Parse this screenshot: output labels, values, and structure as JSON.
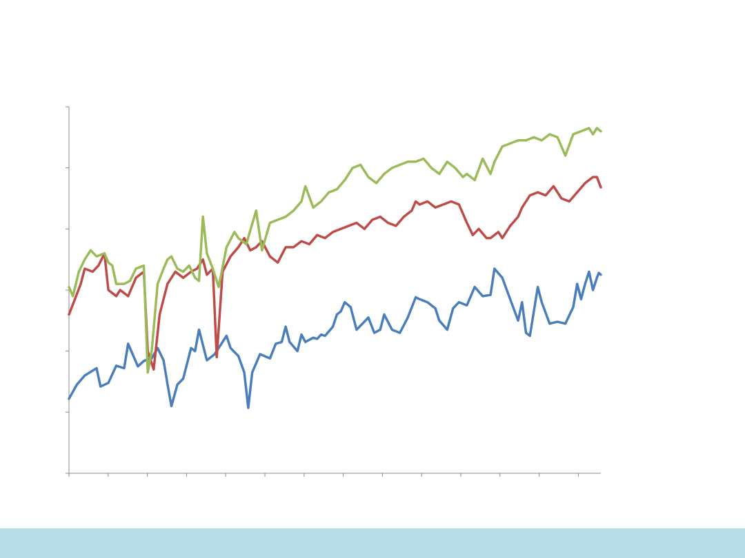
{
  "theme": {
    "background": "#ffffff",
    "footer_color": "#b8dde6",
    "axis_color": "#8a8a8a"
  },
  "chart_data": {
    "type": "line",
    "title": "",
    "xlabel": "",
    "ylabel": "",
    "xlim": [
      0,
      270
    ],
    "ylim": [
      0,
      6
    ],
    "x_tick_count": 14,
    "y_tick_count": 7,
    "grid": false,
    "legend": "none",
    "series": [
      {
        "color": "#4a7ebb",
        "points": [
          [
            0,
            1.22
          ],
          [
            4,
            1.45
          ],
          [
            8,
            1.6
          ],
          [
            14,
            1.72
          ],
          [
            16,
            1.42
          ],
          [
            20,
            1.48
          ],
          [
            24,
            1.76
          ],
          [
            28,
            1.72
          ],
          [
            30,
            2.12
          ],
          [
            35,
            1.75
          ],
          [
            38,
            1.84
          ],
          [
            42,
            1.88
          ],
          [
            45,
            2.05
          ],
          [
            48,
            1.85
          ],
          [
            50,
            1.46
          ],
          [
            52,
            1.1
          ],
          [
            55,
            1.45
          ],
          [
            58,
            1.55
          ],
          [
            62,
            2.05
          ],
          [
            64,
            2.0
          ],
          [
            66,
            2.35
          ],
          [
            70,
            1.85
          ],
          [
            74,
            1.95
          ],
          [
            80,
            2.25
          ],
          [
            82,
            2.05
          ],
          [
            86,
            1.92
          ],
          [
            89,
            1.65
          ],
          [
            91,
            1.07
          ],
          [
            93,
            1.65
          ],
          [
            97,
            1.95
          ],
          [
            102,
            1.88
          ],
          [
            105,
            2.12
          ],
          [
            108,
            2.15
          ],
          [
            110,
            2.4
          ],
          [
            112,
            2.15
          ],
          [
            116,
            2.0
          ],
          [
            118,
            2.27
          ],
          [
            120,
            2.15
          ],
          [
            124,
            2.22
          ],
          [
            126,
            2.2
          ],
          [
            128,
            2.27
          ],
          [
            130,
            2.25
          ],
          [
            134,
            2.4
          ],
          [
            136,
            2.6
          ],
          [
            138,
            2.65
          ],
          [
            140,
            2.8
          ],
          [
            143,
            2.72
          ],
          [
            146,
            2.35
          ],
          [
            149,
            2.45
          ],
          [
            152,
            2.55
          ],
          [
            155,
            2.3
          ],
          [
            158,
            2.35
          ],
          [
            160,
            2.6
          ],
          [
            164,
            2.35
          ],
          [
            168,
            2.3
          ],
          [
            172,
            2.55
          ],
          [
            176,
            2.88
          ],
          [
            178,
            2.85
          ],
          [
            182,
            2.8
          ],
          [
            186,
            2.7
          ],
          [
            188,
            2.5
          ],
          [
            192,
            2.35
          ],
          [
            195,
            2.7
          ],
          [
            198,
            2.8
          ],
          [
            202,
            2.75
          ],
          [
            206,
            3.05
          ],
          [
            210,
            2.9
          ],
          [
            214,
            2.92
          ],
          [
            216,
            3.35
          ],
          [
            220,
            3.2
          ],
          [
            224,
            2.85
          ],
          [
            228,
            2.5
          ],
          [
            230,
            2.8
          ],
          [
            232,
            2.3
          ],
          [
            234,
            2.25
          ],
          [
            238,
            3.05
          ],
          [
            240,
            2.8
          ],
          [
            244,
            2.45
          ],
          [
            248,
            2.48
          ],
          [
            252,
            2.45
          ],
          [
            256,
            2.72
          ],
          [
            258,
            3.1
          ],
          [
            260,
            2.85
          ],
          [
            262,
            3.1
          ],
          [
            264,
            3.3
          ],
          [
            266,
            3.0
          ],
          [
            268,
            3.2
          ],
          [
            269,
            3.28
          ],
          [
            270,
            3.25
          ]
        ]
      },
      {
        "color": "#be4b48",
        "points": [
          [
            0,
            2.6
          ],
          [
            3,
            2.85
          ],
          [
            6,
            3.1
          ],
          [
            8,
            3.35
          ],
          [
            12,
            3.3
          ],
          [
            15,
            3.4
          ],
          [
            18,
            3.6
          ],
          [
            20,
            3.0
          ],
          [
            24,
            2.9
          ],
          [
            26,
            3.0
          ],
          [
            30,
            2.9
          ],
          [
            34,
            3.2
          ],
          [
            38,
            3.3
          ],
          [
            40,
            2.0
          ],
          [
            43,
            1.7
          ],
          [
            46,
            2.6
          ],
          [
            50,
            3.1
          ],
          [
            54,
            3.3
          ],
          [
            58,
            3.2
          ],
          [
            62,
            3.3
          ],
          [
            65,
            3.35
          ],
          [
            68,
            3.5
          ],
          [
            70,
            3.25
          ],
          [
            73,
            3.35
          ],
          [
            75,
            1.9
          ],
          [
            78,
            3.3
          ],
          [
            82,
            3.55
          ],
          [
            86,
            3.7
          ],
          [
            89,
            3.85
          ],
          [
            92,
            3.65
          ],
          [
            95,
            3.7
          ],
          [
            98,
            3.8
          ],
          [
            102,
            3.55
          ],
          [
            106,
            3.45
          ],
          [
            110,
            3.7
          ],
          [
            114,
            3.7
          ],
          [
            118,
            3.8
          ],
          [
            122,
            3.75
          ],
          [
            126,
            3.9
          ],
          [
            130,
            3.85
          ],
          [
            134,
            3.95
          ],
          [
            138,
            4.0
          ],
          [
            142,
            4.05
          ],
          [
            146,
            4.1
          ],
          [
            150,
            4.0
          ],
          [
            154,
            4.15
          ],
          [
            158,
            4.2
          ],
          [
            162,
            4.1
          ],
          [
            166,
            4.05
          ],
          [
            170,
            4.2
          ],
          [
            174,
            4.3
          ],
          [
            176,
            4.45
          ],
          [
            178,
            4.4
          ],
          [
            182,
            4.45
          ],
          [
            186,
            4.35
          ],
          [
            190,
            4.4
          ],
          [
            194,
            4.45
          ],
          [
            198,
            4.4
          ],
          [
            200,
            4.25
          ],
          [
            202,
            4.1
          ],
          [
            205,
            3.9
          ],
          [
            208,
            4.0
          ],
          [
            212,
            3.85
          ],
          [
            214,
            3.85
          ],
          [
            218,
            3.95
          ],
          [
            220,
            3.85
          ],
          [
            224,
            4.05
          ],
          [
            228,
            4.2
          ],
          [
            230,
            4.35
          ],
          [
            234,
            4.55
          ],
          [
            238,
            4.6
          ],
          [
            242,
            4.55
          ],
          [
            246,
            4.7
          ],
          [
            250,
            4.5
          ],
          [
            254,
            4.45
          ],
          [
            258,
            4.6
          ],
          [
            262,
            4.75
          ],
          [
            264,
            4.8
          ],
          [
            266,
            4.85
          ],
          [
            268,
            4.85
          ],
          [
            270,
            4.68
          ]
        ]
      },
      {
        "color": "#9bbb59",
        "points": [
          [
            0,
            3.05
          ],
          [
            2,
            2.9
          ],
          [
            5,
            3.3
          ],
          [
            8,
            3.5
          ],
          [
            11,
            3.65
          ],
          [
            14,
            3.55
          ],
          [
            18,
            3.6
          ],
          [
            20,
            3.45
          ],
          [
            22,
            3.4
          ],
          [
            24,
            3.1
          ],
          [
            28,
            3.1
          ],
          [
            31,
            3.15
          ],
          [
            34,
            3.35
          ],
          [
            38,
            3.4
          ],
          [
            40,
            1.65
          ],
          [
            42,
            2.0
          ],
          [
            45,
            3.1
          ],
          [
            48,
            3.35
          ],
          [
            50,
            3.5
          ],
          [
            52,
            3.55
          ],
          [
            55,
            3.35
          ],
          [
            58,
            3.3
          ],
          [
            61,
            3.4
          ],
          [
            64,
            3.2
          ],
          [
            66,
            3.15
          ],
          [
            68,
            4.2
          ],
          [
            70,
            3.6
          ],
          [
            73,
            3.35
          ],
          [
            76,
            3.05
          ],
          [
            80,
            3.7
          ],
          [
            84,
            3.95
          ],
          [
            86,
            3.85
          ],
          [
            90,
            3.75
          ],
          [
            95,
            4.3
          ],
          [
            98,
            3.65
          ],
          [
            102,
            4.1
          ],
          [
            106,
            4.15
          ],
          [
            110,
            4.2
          ],
          [
            114,
            4.3
          ],
          [
            118,
            4.45
          ],
          [
            120,
            4.7
          ],
          [
            124,
            4.35
          ],
          [
            128,
            4.45
          ],
          [
            132,
            4.6
          ],
          [
            136,
            4.65
          ],
          [
            140,
            4.8
          ],
          [
            144,
            5.0
          ],
          [
            148,
            5.05
          ],
          [
            152,
            4.85
          ],
          [
            156,
            4.75
          ],
          [
            160,
            4.9
          ],
          [
            164,
            5.0
          ],
          [
            168,
            5.05
          ],
          [
            172,
            5.1
          ],
          [
            176,
            5.1
          ],
          [
            180,
            5.15
          ],
          [
            184,
            5.0
          ],
          [
            188,
            4.9
          ],
          [
            192,
            5.1
          ],
          [
            196,
            5.0
          ],
          [
            200,
            4.85
          ],
          [
            202,
            4.9
          ],
          [
            206,
            4.8
          ],
          [
            210,
            5.15
          ],
          [
            214,
            4.9
          ],
          [
            216,
            5.1
          ],
          [
            220,
            5.35
          ],
          [
            224,
            5.4
          ],
          [
            228,
            5.45
          ],
          [
            232,
            5.45
          ],
          [
            236,
            5.5
          ],
          [
            240,
            5.45
          ],
          [
            244,
            5.55
          ],
          [
            248,
            5.5
          ],
          [
            252,
            5.2
          ],
          [
            256,
            5.55
          ],
          [
            260,
            5.6
          ],
          [
            264,
            5.65
          ],
          [
            266,
            5.55
          ],
          [
            268,
            5.65
          ],
          [
            270,
            5.6
          ]
        ]
      }
    ]
  }
}
